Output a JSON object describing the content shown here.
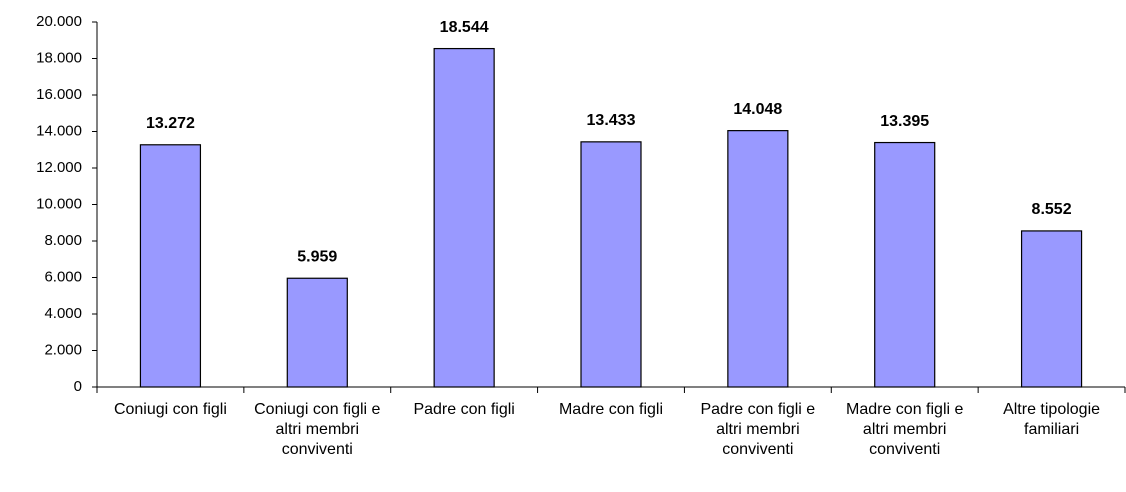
{
  "chart_data": {
    "type": "bar",
    "categories": [
      "Coniugi con figli",
      "Coniugi con figli e altri membri conviventi",
      "Padre con figli",
      "Madre con figli",
      "Padre con figli e altri membri conviventi",
      "Madre con figli e altri membri conviventi",
      "Altre tipologie familiari"
    ],
    "values": [
      13272,
      5959,
      18544,
      13433,
      14048,
      13395,
      8552
    ],
    "value_labels": [
      "13.272",
      "5.959",
      "18.544",
      "13.433",
      "14.048",
      "13.395",
      "8.552"
    ],
    "color": "#9999ff",
    "ylim": [
      0,
      20000
    ],
    "yticks": [
      0,
      {
        "value": 2000,
        "label": "2.000"
      },
      {
        "value": 4000,
        "label": "4.000"
      },
      {
        "value": 6000,
        "label": "6.000"
      },
      {
        "value": 8000,
        "label": "8.000"
      },
      {
        "value": 10000,
        "label": "10.000"
      },
      {
        "value": 12000,
        "label": "12.000"
      },
      {
        "value": 14000,
        "label": "14.000"
      },
      {
        "value": 16000,
        "label": "16.000"
      },
      {
        "value": 18000,
        "label": "18.000"
      },
      {
        "value": 20000,
        "label": "20.000"
      }
    ],
    "grid": false
  }
}
